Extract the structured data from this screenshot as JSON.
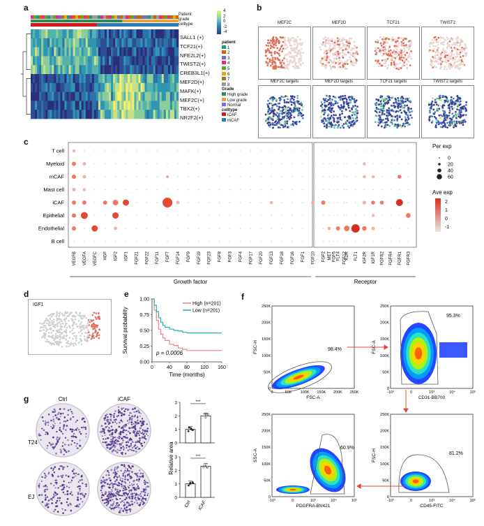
{
  "panel_labels": [
    "a",
    "b",
    "c",
    "d",
    "e",
    "f",
    "g"
  ],
  "panel_a": {
    "annotation_rows": [
      "Patient",
      "grade",
      "celltype"
    ],
    "rows": [
      "SALL1 (+)",
      "TCF21(+)",
      "NFE2L2(+)",
      "TWIST2(+)",
      "CREB3L1(+)",
      "MEF2D(+)",
      "MAFK(+)",
      "MEF2C(+)",
      "TBX2(+)",
      "NR2F2(+)"
    ],
    "scale_ticks": [
      "4",
      "2",
      "0",
      "-2",
      "-4"
    ],
    "legend": {
      "patient_title": "patient",
      "patients": [
        "1",
        "2",
        "3",
        "4",
        "5",
        "6",
        "7",
        "8"
      ],
      "patient_colors": [
        "#1b9e77",
        "#d95f02",
        "#7570b3",
        "#e7298a",
        "#66a61e",
        "#e6ab02",
        "#a6761d",
        "#999999"
      ],
      "grade_title": "Grade",
      "grades": [
        "High grade",
        "Low grade",
        "Normal"
      ],
      "grade_colors": [
        "#2e8b57",
        "#e8a33d",
        "#7b68ee"
      ],
      "celltype_title": "celltype",
      "celltypes": [
        "iCAF",
        "mCAF"
      ],
      "celltype_colors": [
        "#d7191c",
        "#2c7bb6"
      ]
    }
  },
  "panel_b": {
    "titles": [
      "MEF2C",
      "MEF2D",
      "TCF21",
      "TWIST2",
      "MEF2C targets",
      "MEF2D targets",
      "TCF21 targets",
      "TWIST2 targets"
    ]
  },
  "panel_c": {
    "rows": [
      "T cell",
      "Myeloid",
      "mCAF",
      "Mast cell",
      "iCAF",
      "Epithelial",
      "Endothelial",
      "B cell"
    ],
    "growth_factors": [
      "VEGFB",
      "VEGFA",
      "VEGFC",
      "HGF",
      "IGF2",
      "IGF1",
      "FGF21",
      "FGF22",
      "FGF11",
      "FGF7",
      "FGF14",
      "FGF9",
      "FGF19",
      "FGF23",
      "FGF8",
      "FGF3",
      "FGF4",
      "FGF17",
      "FGF20",
      "FGF13",
      "FGF18",
      "FGF16",
      "FGF1",
      "FGF10",
      "FGF2",
      "FGF5",
      "FGF12"
    ],
    "receptors": [
      "MET",
      "FLT4",
      "KDR",
      "FLT1",
      "IGF2R",
      "IGF1R",
      "FGFR2",
      "FGFR4",
      "FGFR1",
      "FGFR3"
    ],
    "group_labels": [
      "Growth factor",
      "Receptor"
    ],
    "legend_per_title": "Per exp",
    "legend_per_values": [
      "0",
      "20",
      "40",
      "60"
    ],
    "legend_ave_title": "Ave exp",
    "legend_ave_values": [
      "2",
      "1",
      "0",
      "-1"
    ]
  },
  "panel_d": {
    "title": "IGF1"
  },
  "panel_e": {
    "ylabel": "Survival probability",
    "xlabel": "Time (months)",
    "yticks": [
      "0.00",
      "0.25",
      "0.50",
      "0.75",
      "1.00"
    ],
    "xticks": [
      "0",
      "40",
      "80",
      "120",
      "160"
    ],
    "legend": [
      "High (n=201)",
      "Low (n=201)"
    ],
    "series_colors": [
      "#f08080",
      "#20b2aa"
    ],
    "pvalue": "p = 0.0006",
    "chart_data": {
      "type": "line",
      "xlabel": "Time (months)",
      "ylabel": "Survival probability",
      "xlim": [
        0,
        160
      ],
      "ylim": [
        0,
        1
      ],
      "series": [
        {
          "name": "High (n=201)",
          "x": [
            0,
            5,
            10,
            15,
            20,
            25,
            30,
            40,
            50,
            60,
            70,
            80,
            100,
            120,
            140,
            160
          ],
          "values": [
            1.0,
            0.82,
            0.66,
            0.52,
            0.44,
            0.38,
            0.34,
            0.28,
            0.26,
            0.22,
            0.2,
            0.18,
            0.18,
            0.18,
            0.18,
            0.18
          ]
        },
        {
          "name": "Low (n=201)",
          "x": [
            0,
            5,
            10,
            15,
            20,
            25,
            30,
            40,
            50,
            60,
            70,
            80,
            100,
            120,
            140,
            160
          ],
          "values": [
            1.0,
            0.9,
            0.8,
            0.7,
            0.63,
            0.58,
            0.55,
            0.52,
            0.5,
            0.49,
            0.47,
            0.46,
            0.46,
            0.46,
            0.46,
            0.46
          ]
        }
      ]
    }
  },
  "panel_f": {
    "plots": [
      {
        "ylabel": "FSC-H",
        "xlabel": "FSC-A",
        "percent": "98.4%"
      },
      {
        "ylabel": "FSC-A",
        "xlabel": "CD31-BB700",
        "percent": "95.3%"
      },
      {
        "ylabel": "SSC-A",
        "xlabel": "PDGFRA-BV421",
        "percent": "60.9%"
      },
      {
        "ylabel": "FSC-H",
        "xlabel": "CD45-FITC",
        "percent": "81.2%"
      }
    ],
    "yticks": [
      "250K",
      "200K",
      "150K",
      "100K",
      "50K",
      "0"
    ],
    "xticks_linear": [
      "0",
      "50K",
      "100K",
      "150K",
      "200K",
      "250K"
    ],
    "xticks_log": [
      "-10³",
      "0",
      "10³",
      "10⁴",
      "10⁵"
    ]
  },
  "panel_g": {
    "col_labels": [
      "Ctrl",
      "iCAF"
    ],
    "row_labels": [
      "T24",
      "EJ"
    ],
    "bar_ylabel": "Relative area",
    "bar_xticks": [
      "Ctrl",
      "iCAF"
    ],
    "significance": "***",
    "yticks_top": [
      "0",
      "1",
      "2",
      "3"
    ],
    "yticks_bottom": [
      "0",
      "1",
      "2",
      "3"
    ],
    "chart_data": [
      {
        "type": "bar",
        "categories": [
          "Ctrl",
          "iCAF"
        ],
        "values": [
          1.0,
          2.0
        ],
        "ylabel": "Relative area",
        "ylim": [
          0,
          3
        ]
      },
      {
        "type": "bar",
        "categories": [
          "Ctrl",
          "iCAF"
        ],
        "values": [
          1.0,
          2.3
        ],
        "ylabel": "Relative area",
        "ylim": [
          0,
          3
        ]
      }
    ]
  }
}
